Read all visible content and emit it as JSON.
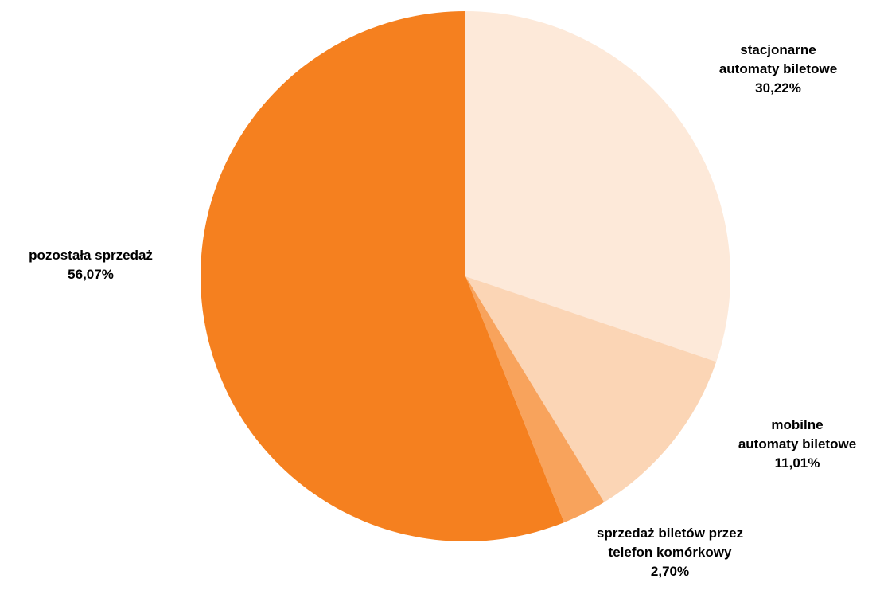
{
  "chart_data": {
    "type": "pie",
    "start_angle": "12 o'clock",
    "direction": "clockwise",
    "slices": [
      {
        "label_lines": [
          "stacjonarne",
          "automaty biletowe"
        ],
        "value": 30.22,
        "value_label": "30,22%",
        "color": "#FDE9D9"
      },
      {
        "label_lines": [
          "mobilne",
          "automaty biletowe"
        ],
        "value": 11.01,
        "value_label": "11,01%",
        "color": "#FBD5B5"
      },
      {
        "label_lines": [
          "sprzedaż biletów przez",
          "telefon komórkowy"
        ],
        "value": 2.7,
        "value_label": "2,70%",
        "color": "#F8A35C"
      },
      {
        "label_lines": [
          "pozostała sprzedaż"
        ],
        "value": 56.07,
        "value_label": "56,07%",
        "color": "#F5801F"
      }
    ]
  }
}
